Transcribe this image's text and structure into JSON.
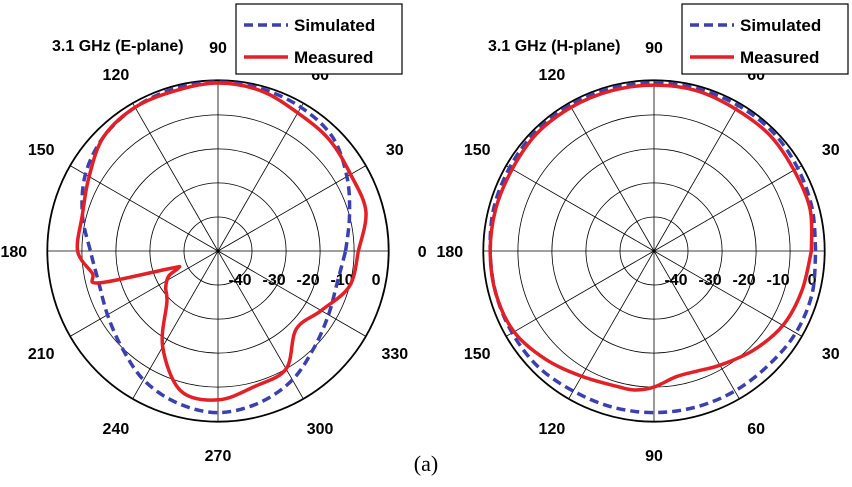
{
  "caption": "(a)",
  "colors": {
    "simulated": "#3a3fb2",
    "measured": "#e41f26",
    "grid": "#000000"
  },
  "chart_data": [
    {
      "type": "polar",
      "title": "3.1 GHz (E-plane)",
      "rlim": [
        -40,
        0
      ],
      "grid": true,
      "legend_position": "top-right",
      "radial_tick_labels": [
        "-40",
        "-30",
        "-20",
        "-10",
        "0"
      ],
      "angle_labels": [
        {
          "angle": 0,
          "text": "0"
        },
        {
          "angle": 30,
          "text": "30"
        },
        {
          "angle": 60,
          "text": "60"
        },
        {
          "angle": 90,
          "text": "90"
        },
        {
          "angle": 120,
          "text": "120"
        },
        {
          "angle": 150,
          "text": "150"
        },
        {
          "angle": 180,
          "text": "180"
        },
        {
          "angle": 210,
          "text": "210"
        },
        {
          "angle": 240,
          "text": "240"
        },
        {
          "angle": 270,
          "text": "270"
        },
        {
          "angle": 300,
          "text": "300"
        },
        {
          "angle": 330,
          "text": "330"
        }
      ],
      "series": [
        {
          "name": "Simulated",
          "style": "dashed",
          "theta": [
            0,
            15,
            30,
            45,
            60,
            75,
            90,
            105,
            120,
            135,
            150,
            165,
            180,
            195,
            210,
            225,
            240,
            255,
            270,
            285,
            300,
            315,
            330,
            345,
            360
          ],
          "r_db": [
            -10,
            -8,
            -5,
            -2,
            -1,
            -0.5,
            -0.3,
            -0.5,
            -1,
            -2,
            -4,
            -7,
            -10,
            -11,
            -10,
            -8,
            -5,
            -3,
            -2,
            -3,
            -5,
            -8,
            -10,
            -11,
            -10
          ]
        },
        {
          "name": "Measured",
          "style": "solid",
          "theta": [
            0,
            15,
            30,
            45,
            60,
            75,
            90,
            105,
            120,
            135,
            150,
            165,
            180,
            190,
            195,
            200,
            203,
            207,
            215,
            225,
            240,
            255,
            270,
            285,
            300,
            315,
            330,
            345,
            360
          ],
          "r_db": [
            -7,
            -4,
            -4,
            -3,
            -2.5,
            -1,
            -0.5,
            -1,
            -1,
            -2,
            -5,
            -7,
            -7,
            -10,
            -11,
            -28,
            -30,
            -27,
            -25,
            -23,
            -14,
            -6,
            -5,
            -7,
            -8,
            -14,
            -12,
            -8,
            -7
          ]
        }
      ]
    },
    {
      "type": "polar",
      "title": "3.1 GHz (H-plane)",
      "rlim": [
        -40,
        0
      ],
      "grid": true,
      "legend_position": "top-right",
      "radial_tick_labels": [
        "-40",
        "-30",
        "-20",
        "-10",
        "0"
      ],
      "angle_labels": [
        {
          "angle": 0,
          "text": "0"
        },
        {
          "angle": 30,
          "text": "30"
        },
        {
          "angle": 60,
          "text": "60"
        },
        {
          "angle": 90,
          "text": "90"
        },
        {
          "angle": 120,
          "text": "120"
        },
        {
          "angle": 150,
          "text": "150"
        },
        {
          "angle": 180,
          "text": "180"
        },
        {
          "angle": 210,
          "text": "150"
        },
        {
          "angle": 240,
          "text": "120"
        },
        {
          "angle": 270,
          "text": "90"
        },
        {
          "angle": 300,
          "text": "60"
        },
        {
          "angle": 330,
          "text": "30"
        }
      ],
      "series": [
        {
          "name": "Simulated",
          "style": "dashed",
          "theta": [
            0,
            15,
            30,
            45,
            60,
            75,
            90,
            105,
            120,
            135,
            150,
            165,
            180,
            195,
            210,
            225,
            240,
            255,
            270,
            285,
            300,
            315,
            330,
            345,
            360
          ],
          "r_db": [
            -2,
            -1.5,
            -1,
            -0.5,
            -0.5,
            -0.5,
            -0.5,
            -0.5,
            -0.5,
            -0.5,
            -0.8,
            -1,
            -1.5,
            -1.5,
            -1.5,
            -1.5,
            -2,
            -2,
            -2,
            -2,
            -2,
            -2,
            -1.5,
            -1.5,
            -2
          ]
        },
        {
          "name": "Measured",
          "style": "solid",
          "theta": [
            0,
            15,
            30,
            45,
            60,
            75,
            90,
            105,
            120,
            135,
            150,
            165,
            180,
            195,
            210,
            225,
            240,
            255,
            262,
            270,
            280,
            290,
            300,
            315,
            330,
            345,
            360
          ],
          "r_db": [
            -3,
            -2,
            -2,
            -1.5,
            -1.5,
            -1,
            -1,
            -1,
            -1,
            -1,
            -1.5,
            -1.5,
            -1.5,
            -1.5,
            -2,
            -4,
            -6,
            -7,
            -7,
            -8,
            -10,
            -10,
            -9,
            -7,
            -5,
            -4,
            -3
          ]
        }
      ]
    }
  ]
}
